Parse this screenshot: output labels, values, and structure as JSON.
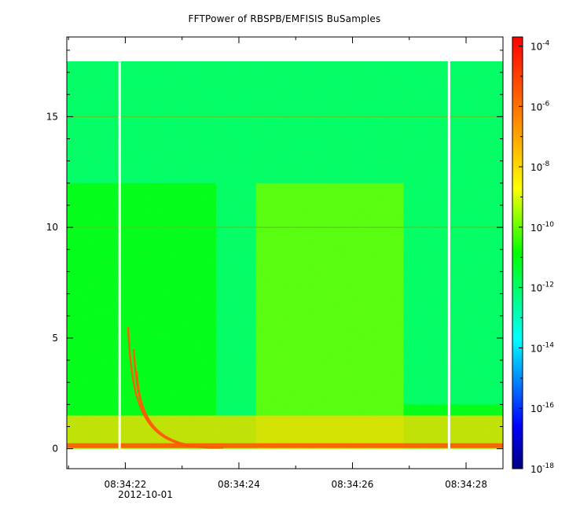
{
  "chart_data": {
    "type": "heatmap",
    "title": "FFTPower of RBSPB/EMFISIS  BuSamples",
    "xlabel": "",
    "ylabel": "",
    "x_ticks": [
      "08:34:22",
      "08:34:24",
      "08:34:26",
      "08:34:28"
    ],
    "x_date_label": "2012-10-01",
    "x_range": [
      "08:34:20.97",
      "08:34:28.65"
    ],
    "y_ticks": [
      0,
      5,
      10,
      15
    ],
    "ylim": [
      -0.9,
      18.6
    ],
    "y_data_extent": [
      0,
      17.5
    ],
    "colorbar": {
      "scale": "log",
      "range": [
        "1e-18",
        "2e-4"
      ],
      "tick_base": "10",
      "tick_exponents": [
        "-4",
        "-6",
        "-8",
        "-10",
        "-12",
        "-14",
        "-16",
        "-18"
      ],
      "colors": [
        "#00007f",
        "#0000ff",
        "#00ffff",
        "#00ff00",
        "#ffff00",
        "#ff7f00",
        "#ff0000"
      ]
    },
    "data_gaps_time": [
      "08:34:21.9",
      "08:34:27.7"
    ],
    "regions": [
      {
        "from": "08:34:20.97",
        "to": "08:34:23.6",
        "upper_band_top": 12,
        "power": "1e-11"
      },
      {
        "from": "08:34:23.6",
        "to": "08:34:24.3",
        "upper_band_top": 1.5,
        "power": "1e-11"
      },
      {
        "from": "08:34:24.3",
        "to": "08:34:26.9",
        "upper_band_top": 12,
        "power": "1e-10"
      },
      {
        "from": "08:34:26.9",
        "to": "08:34:28.65",
        "upper_band_top": 2,
        "power": "1e-11"
      }
    ],
    "background_power": "1e-12",
    "low_frequency_band": {
      "max": 1,
      "power": "1e-8"
    },
    "horizontal_lines_y": [
      15,
      10
    ],
    "dispersive_whistlers": [
      {
        "start": "08:34:22.05",
        "f_start": 5.5
      },
      {
        "start": "08:34:22.15",
        "f_start": 4.5
      },
      {
        "start": "08:34:22.2",
        "f_start": 3.5
      }
    ]
  }
}
